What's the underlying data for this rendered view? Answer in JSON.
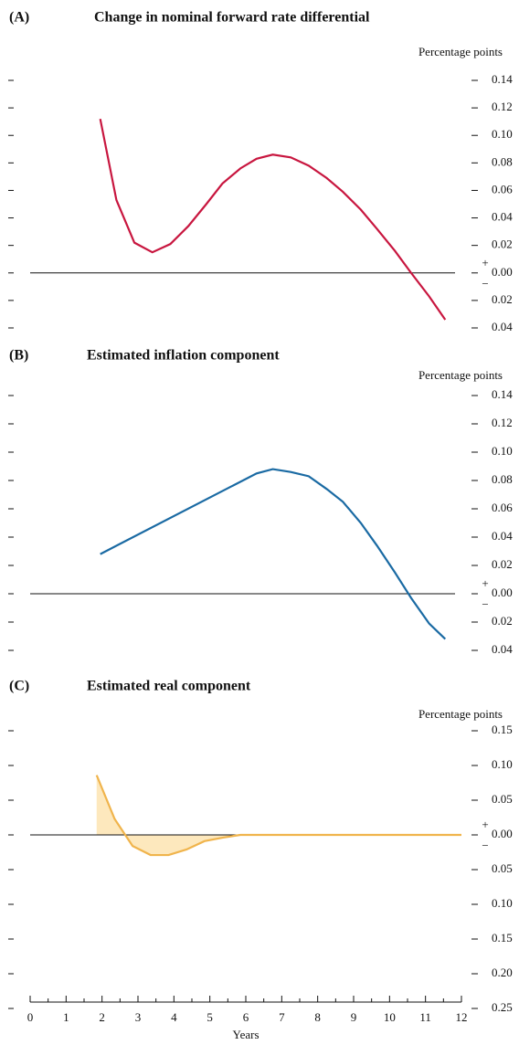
{
  "chart_data": [
    {
      "type": "line",
      "panel": "(A)",
      "title": "Change in nominal forward rate differential",
      "ylabel": "Percentage points",
      "sign_above": "+",
      "sign_below": "−",
      "xlim": [
        0,
        12
      ],
      "x": [
        1.95,
        2.4,
        2.9,
        3.4,
        3.9,
        4.4,
        4.9,
        5.35,
        5.85,
        6.3,
        6.75,
        7.25,
        7.75,
        8.25,
        8.7,
        9.2,
        9.65,
        10.15,
        10.6,
        11.1,
        11.55
      ],
      "series": [
        {
          "color": "#c8163f",
          "values": [
            0.112,
            0.053,
            0.022,
            0.015,
            0.021,
            0.034,
            0.05,
            0.065,
            0.076,
            0.083,
            0.086,
            0.084,
            0.078,
            0.069,
            0.059,
            0.046,
            0.032,
            0.016,
            0.0,
            -0.017,
            -0.034
          ]
        }
      ],
      "ylim": [
        -0.04,
        0.14
      ],
      "yticks": [
        0.14,
        0.12,
        {
          "value": 0.1,
          "label": "0.10"
        },
        0.08,
        0.06,
        0.04,
        0.02,
        {
          "value": 0,
          "label": "0.00"
        },
        {
          "value": -0.02,
          "label": "0.02"
        },
        {
          "value": -0.04,
          "label": "0.04"
        }
      ]
    },
    {
      "type": "line",
      "panel": "(B)",
      "title": "Estimated inflation component",
      "ylabel": "Percentage points",
      "sign_above": "+",
      "sign_below": "−",
      "xlim": [
        0,
        12
      ],
      "x": [
        1.95,
        6.3,
        6.75,
        7.25,
        7.75,
        8.25,
        8.7,
        9.2,
        9.65,
        10.15,
        10.6,
        11.1,
        11.55
      ],
      "series": [
        {
          "color": "#1a6aa3",
          "values": [
            0.028,
            0.085,
            0.088,
            0.086,
            0.083,
            0.074,
            0.065,
            0.05,
            0.034,
            0.015,
            -0.003,
            -0.021,
            -0.032
          ]
        }
      ],
      "ylim": [
        -0.04,
        0.14
      ],
      "yticks": [
        0.14,
        0.12,
        {
          "value": 0.1,
          "label": "0.10"
        },
        0.08,
        0.06,
        0.04,
        0.02,
        {
          "value": 0,
          "label": "0.00"
        },
        {
          "value": -0.02,
          "label": "0.02"
        },
        {
          "value": -0.04,
          "label": "0.04"
        }
      ]
    },
    {
      "type": "area",
      "panel": "(C)",
      "title": "Estimated real component",
      "ylabel": "Percentage points",
      "sign_above": "+",
      "sign_below": "−",
      "xlim": [
        0,
        12
      ],
      "xticks": [
        0,
        1,
        2,
        3,
        4,
        5,
        6,
        7,
        8,
        9,
        10,
        11,
        12
      ],
      "xlabel": "Years",
      "x": [
        1.85,
        2.35,
        2.85,
        3.35,
        3.85,
        4.35,
        4.85,
        5.35,
        5.85,
        12
      ],
      "series": [
        {
          "color": "#f0b44c",
          "fill": "#fde8bd",
          "values": [
            0.086,
            0.023,
            -0.016,
            -0.029,
            -0.029,
            -0.021,
            -0.009,
            -0.004,
            0.0,
            0.0
          ]
        }
      ],
      "ylim": [
        -0.25,
        0.15
      ],
      "yticks": [
        0.15,
        {
          "value": 0.1,
          "label": "0.10"
        },
        0.05,
        {
          "value": 0,
          "label": "0.00"
        },
        {
          "value": -0.05,
          "label": "0.05"
        },
        {
          "value": -0.1,
          "label": "0.10"
        },
        {
          "value": -0.15,
          "label": "0.15"
        },
        {
          "value": -0.2,
          "label": "0.20"
        },
        {
          "value": -0.25,
          "label": "0.25"
        }
      ]
    }
  ]
}
